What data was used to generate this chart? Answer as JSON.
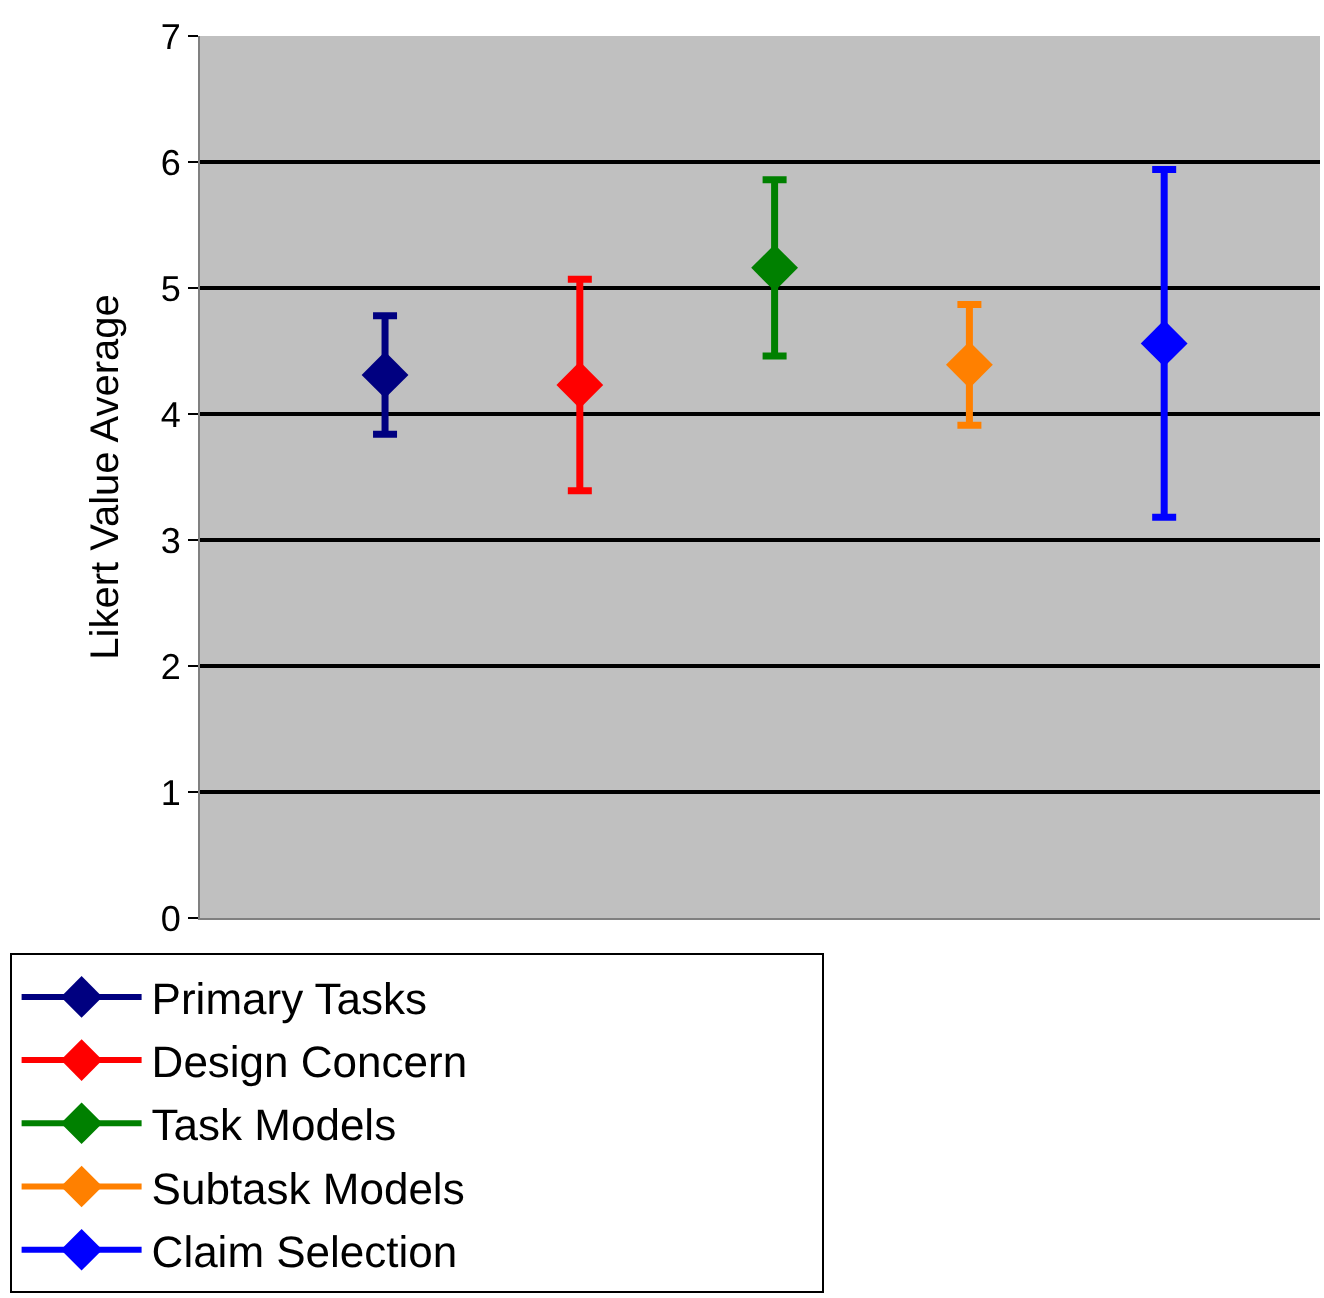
{
  "chart_data": {
    "type": "scatter",
    "ylabel": "Likert Value Average",
    "categories": [
      null,
      null,
      null,
      null,
      null
    ],
    "series": [
      {
        "name": "Primary Tasks",
        "color": "#000080",
        "values": [
          4.31,
          null,
          null,
          null,
          null
        ],
        "errors": [
          0.47,
          null,
          null,
          null,
          null
        ]
      },
      {
        "name": "Design Concern",
        "color": "#ff0000",
        "values": [
          null,
          4.23,
          null,
          null,
          null
        ],
        "errors": [
          null,
          0.84,
          null,
          null,
          null
        ]
      },
      {
        "name": "Task Models",
        "color": "#008000",
        "values": [
          null,
          null,
          5.16,
          null,
          null
        ],
        "errors": [
          null,
          null,
          0.7,
          null,
          null
        ]
      },
      {
        "name": "Subtask Models",
        "color": "#ff8000",
        "values": [
          null,
          null,
          null,
          4.39,
          null
        ],
        "errors": [
          null,
          null,
          null,
          0.48,
          null
        ]
      },
      {
        "name": "Claim Selection",
        "color": "#0000ff",
        "values": [
          null,
          null,
          null,
          null,
          4.56
        ],
        "errors": [
          null,
          null,
          null,
          null,
          1.38
        ]
      }
    ],
    "ylim": [
      0,
      7
    ],
    "yticks": [
      0,
      1,
      2,
      3,
      4,
      5,
      6,
      7
    ],
    "grid": "y",
    "legend": "bottom",
    "marker": "diamond",
    "tick_labels": "y"
  }
}
